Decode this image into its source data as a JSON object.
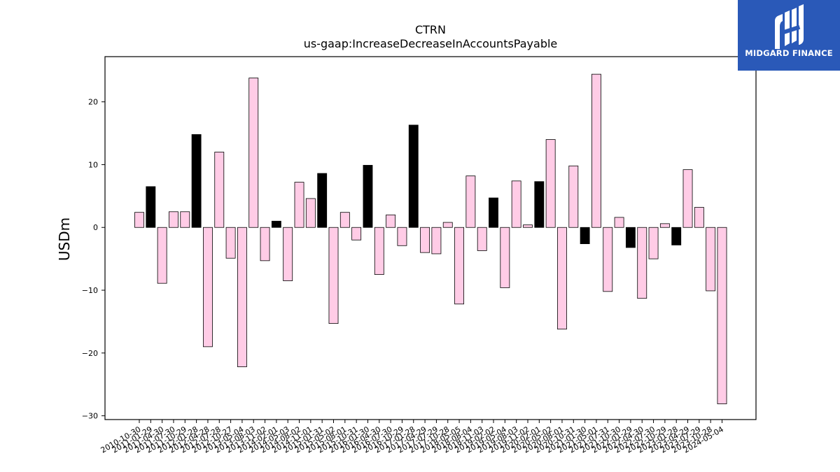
{
  "brand": {
    "name": "MIDGARD FINANCE",
    "background": "#2a59b8",
    "icon": "midgard-logo-icon"
  },
  "chart_data": {
    "type": "bar",
    "title": "CTRN",
    "subtitle": "us-gaap:IncreaseDecreaseInAccountsPayable",
    "xlabel": "",
    "ylabel": "USDm",
    "ylim": [
      -30.6,
      27.2
    ],
    "yticks": [
      -30,
      -20,
      -10,
      0,
      10,
      20
    ],
    "grid": false,
    "legend": "none",
    "colors": {
      "default": "#ffcce6",
      "highlight": "#000000",
      "edge": "#000000"
    },
    "categories": [
      "2010-10-30",
      "2011-01-29",
      "2011-04-30",
      "2011-07-30",
      "2011-10-29",
      "2012-01-28",
      "2012-04-28",
      "2012-07-28",
      "2012-10-27",
      "2013-05-04",
      "2013-08-03",
      "2013-11-02",
      "2014-02-01",
      "2014-05-03",
      "2014-08-02",
      "2014-11-01",
      "2015-01-31",
      "2015-05-02",
      "2015-08-01",
      "2015-10-31",
      "2016-01-30",
      "2016-04-30",
      "2016-07-30",
      "2016-10-29",
      "2017-01-28",
      "2017-04-29",
      "2017-07-29",
      "2017-10-28",
      "2018-05-05",
      "2018-08-04",
      "2018-11-03",
      "2019-02-02",
      "2019-05-04",
      "2019-08-03",
      "2019-11-02",
      "2020-02-01",
      "2020-05-02",
      "2020-08-01",
      "2020-10-31",
      "2021-01-30",
      "2021-05-01",
      "2021-07-31",
      "2021-10-30",
      "2022-01-29",
      "2022-04-30",
      "2022-07-30",
      "2022-10-29",
      "2023-01-28",
      "2023-04-29",
      "2023-07-29",
      "2023-10-28",
      "2024-05-04"
    ],
    "values": [
      2.4,
      6.5,
      -8.9,
      2.5,
      2.5,
      14.8,
      -19.0,
      12.0,
      -4.9,
      -22.2,
      23.8,
      -5.3,
      1.0,
      -8.5,
      7.2,
      4.6,
      8.6,
      -15.3,
      2.4,
      -2.0,
      9.9,
      -7.5,
      2.0,
      -2.9,
      16.3,
      -4.0,
      -4.2,
      0.8,
      -12.2,
      8.2,
      -3.7,
      4.7,
      -9.6,
      7.4,
      0.4,
      7.3,
      14.0,
      -16.2,
      9.8,
      -2.6,
      24.4,
      -10.2,
      1.6,
      -3.2,
      -11.3,
      -5.0,
      0.6,
      -2.8,
      9.2,
      3.2,
      -10.1,
      -28.1
    ],
    "highlight": [
      false,
      true,
      false,
      false,
      false,
      true,
      false,
      false,
      false,
      false,
      false,
      false,
      true,
      false,
      false,
      false,
      true,
      false,
      false,
      false,
      true,
      false,
      false,
      false,
      true,
      false,
      false,
      false,
      false,
      false,
      false,
      true,
      false,
      false,
      false,
      true,
      false,
      false,
      false,
      true,
      false,
      false,
      false,
      true,
      false,
      false,
      false,
      true,
      false,
      false,
      false,
      false
    ]
  }
}
